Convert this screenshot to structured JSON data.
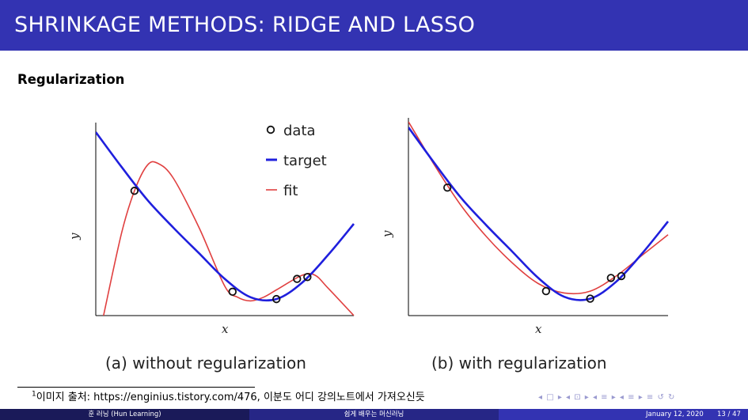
{
  "header": {
    "title": "SHRINKAGE METHODS: RIDGE AND LASSO"
  },
  "section": {
    "subtitle": "Regularization"
  },
  "chart_data": [
    {
      "type": "line",
      "caption": "(a) without regularization",
      "xlabel": "x",
      "ylabel": "y",
      "legend": {
        "placement": "top-right",
        "entries": [
          "data",
          "target",
          "fit"
        ]
      },
      "xlim": [
        0,
        1
      ],
      "ylim": [
        0,
        1
      ],
      "series": [
        {
          "name": "data",
          "kind": "scatter",
          "x": [
            0.15,
            0.53,
            0.7,
            0.78,
            0.82
          ],
          "y": [
            0.68,
            0.13,
            0.09,
            0.2,
            0.21
          ]
        },
        {
          "name": "target",
          "kind": "line",
          "color": "#1f1fdd",
          "x": [
            0.0,
            0.1,
            0.2,
            0.3,
            0.4,
            0.5,
            0.6,
            0.7,
            0.8,
            0.9,
            1.0
          ],
          "y": [
            1.0,
            0.81,
            0.63,
            0.48,
            0.34,
            0.2,
            0.1,
            0.09,
            0.18,
            0.33,
            0.5
          ]
        },
        {
          "name": "fit",
          "kind": "line",
          "color": "#e04040",
          "x": [
            0.03,
            0.1,
            0.15,
            0.2,
            0.24,
            0.3,
            0.4,
            0.5,
            0.55,
            0.6,
            0.65,
            0.7,
            0.8,
            0.85,
            0.9,
            1.0
          ],
          "y": [
            0.0,
            0.45,
            0.68,
            0.82,
            0.83,
            0.75,
            0.48,
            0.16,
            0.1,
            0.08,
            0.1,
            0.14,
            0.22,
            0.22,
            0.15,
            0.0
          ]
        }
      ]
    },
    {
      "type": "line",
      "caption": "(b) with regularization",
      "xlabel": "x",
      "ylabel": "y",
      "xlim": [
        0,
        1
      ],
      "ylim": [
        0,
        1
      ],
      "series": [
        {
          "name": "data",
          "kind": "scatter",
          "x": [
            0.15,
            0.53,
            0.7,
            0.78,
            0.82
          ],
          "y": [
            0.68,
            0.13,
            0.09,
            0.2,
            0.21
          ]
        },
        {
          "name": "target",
          "kind": "line",
          "color": "#1f1fdd",
          "x": [
            0.0,
            0.1,
            0.2,
            0.3,
            0.4,
            0.5,
            0.6,
            0.7,
            0.8,
            0.9,
            1.0
          ],
          "y": [
            1.0,
            0.81,
            0.63,
            0.48,
            0.34,
            0.2,
            0.1,
            0.09,
            0.18,
            0.33,
            0.5
          ]
        },
        {
          "name": "fit",
          "kind": "line",
          "color": "#e04040",
          "x": [
            0.0,
            0.1,
            0.2,
            0.3,
            0.4,
            0.5,
            0.6,
            0.7,
            0.8,
            0.9,
            1.0
          ],
          "y": [
            1.03,
            0.8,
            0.59,
            0.42,
            0.28,
            0.17,
            0.12,
            0.13,
            0.21,
            0.32,
            0.43
          ]
        }
      ]
    }
  ],
  "footnote": {
    "marker": "1",
    "text": "이미지 출처: https://enginius.tistory.com/476, 이분도 어디 강의노트에서 가져오신듯"
  },
  "navigation": {
    "symbols": "◂ □ ▸ ◂ ⊡ ▸ ◂ ≡ ▸ ◂ ≡ ▸ ≡ ↺ ↻"
  },
  "footer": {
    "author": "훈 러닝 (Hun Learning)",
    "course": "쉽게 배우는 머신러닝",
    "date": "January 12, 2020",
    "page": "13 / 47"
  },
  "colors": {
    "header_bg": "#3333b2",
    "footer_dark": "#1a1a59",
    "footer_mid": "#262686",
    "target": "#1f1fdd",
    "fit": "#e04040"
  }
}
